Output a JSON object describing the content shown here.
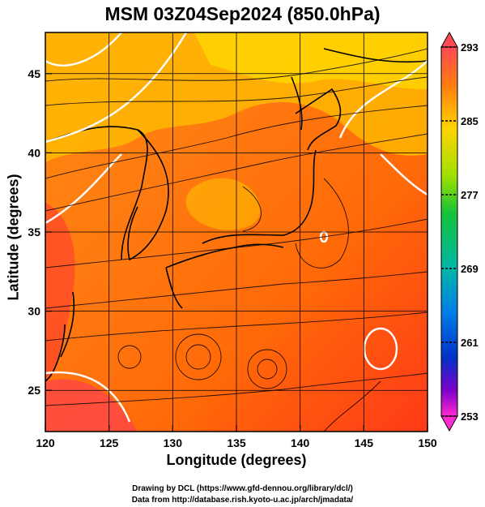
{
  "title": "MSM 03Z04Sep2024 (850.0hPa)",
  "xlabel": "Longitude (degrees)",
  "ylabel": "Latitude  (degrees)",
  "credits": [
    "Drawing by DCL (https://www.gfd-dennou.org/library/dcl/)",
    "Data from http://database.rish.kyoto-u.ac.jp/arch/jmadata/"
  ],
  "map": {
    "lon_range": [
      120,
      150
    ],
    "lat_range": [
      22.4,
      47.6
    ],
    "lon_ticks": [
      "120",
      "125",
      "130",
      "135",
      "140",
      "145",
      "150"
    ],
    "lat_ticks": [
      "25",
      "30",
      "35",
      "40",
      "45"
    ],
    "field": "temperature",
    "overlay": "streamlines",
    "contour_color": "#ffffff",
    "coast_color": "#000000"
  },
  "colorbar": {
    "ticks": [
      "293",
      "285",
      "277",
      "269",
      "261",
      "253"
    ],
    "colors": [
      "#ff4a55",
      "#ff7a10",
      "#ffd300",
      "#9fe000",
      "#15c23a",
      "#00b6a8",
      "#007de6",
      "#0032c8",
      "#7d00c8",
      "#ff2ad0"
    ]
  }
}
